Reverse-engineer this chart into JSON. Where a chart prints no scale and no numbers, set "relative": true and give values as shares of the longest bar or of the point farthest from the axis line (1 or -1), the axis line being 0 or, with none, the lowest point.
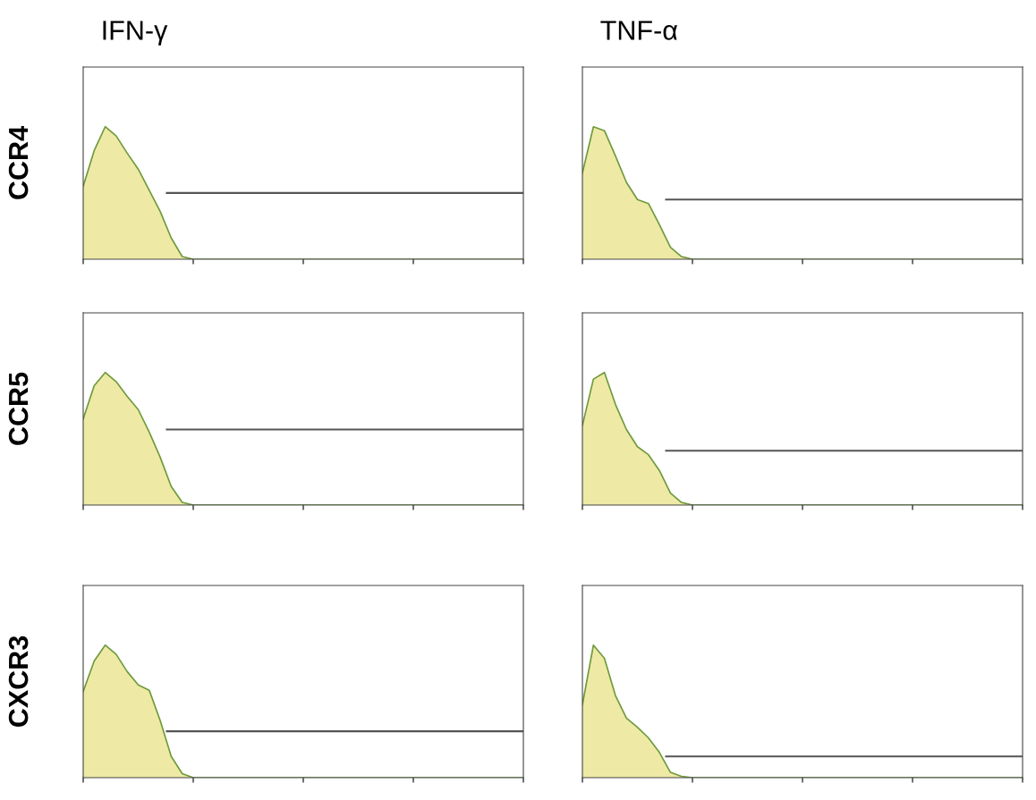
{
  "chart_data": [
    {
      "type": "area",
      "title": "IFN-γ",
      "ylabel": "CCR4",
      "relative": true,
      "categories": [
        null,
        null,
        null,
        null,
        null,
        null,
        null,
        null,
        null,
        null,
        null,
        null,
        null,
        null,
        null,
        null,
        null,
        null,
        null,
        null,
        null,
        null,
        null,
        null,
        null,
        null,
        null,
        null,
        null,
        null,
        null,
        null,
        null,
        null,
        null,
        null,
        null,
        null,
        null,
        null,
        null
      ],
      "color": "#6f9a3c",
      "values": [
        0.55,
        0.82,
        1.0,
        0.93,
        0.8,
        0.68,
        0.52,
        0.36,
        0.16,
        0.02,
        0,
        0,
        0,
        0,
        0,
        0,
        0,
        0,
        0,
        0,
        0,
        0,
        0,
        0,
        0,
        0,
        0,
        0,
        0,
        0,
        0,
        0,
        0,
        0,
        0,
        0,
        0,
        0,
        0,
        0,
        0
      ],
      "ref_lines": [
        {
          "axis": "y",
          "value": 0.5,
          "color": "#555555"
        }
      ]
    },
    {
      "type": "area",
      "title": "TNF-α",
      "relative": true,
      "categories": [
        null,
        null,
        null,
        null,
        null,
        null,
        null,
        null,
        null,
        null,
        null,
        null,
        null,
        null,
        null,
        null,
        null,
        null,
        null,
        null,
        null,
        null,
        null,
        null,
        null,
        null,
        null,
        null,
        null,
        null,
        null,
        null,
        null,
        null,
        null,
        null,
        null,
        null,
        null,
        null,
        null
      ],
      "color": "#6f9a3c",
      "values": [
        0.65,
        1.0,
        0.97,
        0.78,
        0.58,
        0.45,
        0.42,
        0.26,
        0.09,
        0.02,
        0,
        0,
        0,
        0,
        0,
        0,
        0,
        0,
        0,
        0,
        0,
        0,
        0,
        0,
        0,
        0,
        0,
        0,
        0,
        0,
        0,
        0,
        0,
        0,
        0,
        0,
        0,
        0,
        0,
        0,
        0
      ],
      "ref_lines": [
        {
          "axis": "y",
          "value": 0.45,
          "color": "#555555"
        }
      ]
    },
    {
      "type": "area",
      "ylabel": "CCR5",
      "relative": true,
      "categories": [
        null,
        null,
        null,
        null,
        null,
        null,
        null,
        null,
        null,
        null,
        null,
        null,
        null,
        null,
        null,
        null,
        null,
        null,
        null,
        null,
        null,
        null,
        null,
        null,
        null,
        null,
        null,
        null,
        null,
        null,
        null,
        null,
        null,
        null,
        null,
        null,
        null,
        null,
        null,
        null,
        null
      ],
      "color": "#6f9a3c",
      "values": [
        0.65,
        0.9,
        1.0,
        0.93,
        0.82,
        0.72,
        0.55,
        0.36,
        0.14,
        0.02,
        0,
        0,
        0,
        0,
        0,
        0,
        0,
        0,
        0,
        0,
        0,
        0,
        0,
        0,
        0,
        0,
        0,
        0,
        0,
        0,
        0,
        0,
        0,
        0,
        0,
        0,
        0,
        0,
        0,
        0,
        0
      ],
      "ref_lines": [
        {
          "axis": "y",
          "value": 0.57,
          "color": "#555555"
        }
      ]
    },
    {
      "type": "area",
      "relative": true,
      "categories": [
        null,
        null,
        null,
        null,
        null,
        null,
        null,
        null,
        null,
        null,
        null,
        null,
        null,
        null,
        null,
        null,
        null,
        null,
        null,
        null,
        null,
        null,
        null,
        null,
        null,
        null,
        null,
        null,
        null,
        null,
        null,
        null,
        null,
        null,
        null,
        null,
        null,
        null,
        null,
        null,
        null
      ],
      "color": "#6f9a3c",
      "values": [
        0.6,
        0.95,
        1.0,
        0.76,
        0.57,
        0.44,
        0.38,
        0.26,
        0.09,
        0.02,
        0,
        0,
        0,
        0,
        0,
        0,
        0,
        0,
        0,
        0,
        0,
        0,
        0,
        0,
        0,
        0,
        0,
        0,
        0,
        0,
        0,
        0,
        0,
        0,
        0,
        0,
        0,
        0,
        0,
        0,
        0
      ],
      "ref_lines": [
        {
          "axis": "y",
          "value": 0.41,
          "color": "#555555"
        }
      ]
    },
    {
      "type": "area",
      "ylabel": "CXCR3",
      "relative": true,
      "categories": [
        null,
        null,
        null,
        null,
        null,
        null,
        null,
        null,
        null,
        null,
        null,
        null,
        null,
        null,
        null,
        null,
        null,
        null,
        null,
        null,
        null,
        null,
        null,
        null,
        null,
        null,
        null,
        null,
        null,
        null,
        null,
        null,
        null,
        null,
        null,
        null,
        null,
        null,
        null,
        null,
        null
      ],
      "color": "#6f9a3c",
      "values": [
        0.65,
        0.88,
        1.0,
        0.93,
        0.8,
        0.7,
        0.66,
        0.43,
        0.16,
        0.03,
        0,
        0,
        0,
        0,
        0,
        0,
        0,
        0,
        0,
        0,
        0,
        0,
        0,
        0,
        0,
        0,
        0,
        0,
        0,
        0,
        0,
        0,
        0,
        0,
        0,
        0,
        0,
        0,
        0,
        0,
        0
      ],
      "ref_lines": [
        {
          "axis": "y",
          "value": 0.35,
          "color": "#555555"
        }
      ]
    },
    {
      "type": "area",
      "relative": true,
      "categories": [
        null,
        null,
        null,
        null,
        null,
        null,
        null,
        null,
        null,
        null,
        null,
        null,
        null,
        null,
        null,
        null,
        null,
        null,
        null,
        null,
        null,
        null,
        null,
        null,
        null,
        null,
        null,
        null,
        null,
        null,
        null,
        null,
        null,
        null,
        null,
        null,
        null,
        null,
        null,
        null,
        null
      ],
      "color": "#6f9a3c",
      "values": [
        0.55,
        1.0,
        0.9,
        0.62,
        0.45,
        0.38,
        0.3,
        0.19,
        0.04,
        0.01,
        0,
        0,
        0,
        0,
        0,
        0,
        0,
        0,
        0,
        0,
        0,
        0,
        0,
        0,
        0,
        0,
        0,
        0,
        0,
        0,
        0,
        0,
        0,
        0,
        0,
        0,
        0,
        0,
        0,
        0,
        0
      ],
      "ref_lines": [
        {
          "axis": "y",
          "value": 0.16,
          "color": "#555555"
        }
      ]
    }
  ]
}
